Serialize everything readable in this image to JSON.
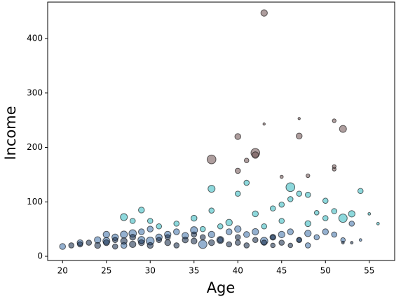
{
  "chart_data": {
    "type": "scatter",
    "x_label": "Age",
    "y_label": "Income",
    "xlim": [
      18.3,
      57.9
    ],
    "ylim": [
      -7.7,
      467
    ],
    "xticks": [
      20,
      25,
      30,
      35,
      40,
      45,
      50,
      55
    ],
    "yticks": [
      0,
      100,
      200,
      300,
      400
    ],
    "series": [
      {
        "color": "#6b4e4e",
        "x": [
          43,
          37,
          42,
          42,
          40,
          47,
          52,
          51,
          40,
          41,
          43,
          47,
          51,
          51,
          45,
          48
        ],
        "values": [
          447,
          178,
          190,
          186,
          220,
          221,
          234,
          249,
          157,
          176,
          243,
          253,
          160,
          165,
          146,
          148
        ],
        "sizes": [
          60,
          110,
          110,
          60,
          50,
          50,
          70,
          20,
          40,
          30,
          8,
          8,
          20,
          20,
          15,
          20
        ]
      },
      {
        "color": "#2fb8c0",
        "x": [
          46,
          37,
          41,
          27,
          29,
          30,
          35,
          37,
          39,
          40,
          42,
          44,
          45,
          46,
          47,
          48,
          49,
          50,
          51,
          52,
          53,
          54,
          43,
          45,
          48,
          50,
          38,
          36,
          33,
          31,
          28,
          55,
          56
        ],
        "values": [
          127,
          124,
          135,
          72,
          85,
          65,
          70,
          84,
          62,
          115,
          78,
          88,
          95,
          105,
          115,
          113,
          80,
          102,
          83,
          70,
          78,
          120,
          55,
          65,
          60,
          70,
          55,
          50,
          60,
          55,
          65,
          78,
          60
        ],
        "sizes": [
          110,
          70,
          40,
          70,
          50,
          40,
          50,
          40,
          60,
          40,
          50,
          40,
          40,
          40,
          40,
          40,
          30,
          40,
          40,
          100,
          60,
          40,
          40,
          40,
          50,
          40,
          40,
          40,
          40,
          40,
          40,
          10,
          10
        ]
      },
      {
        "color": "#3d6fa8",
        "x": [
          20,
          22,
          24,
          25,
          26,
          27,
          28,
          29,
          30,
          31,
          32,
          33,
          34,
          35,
          36,
          37,
          38,
          39,
          40,
          41,
          42,
          43,
          44,
          45,
          46,
          47,
          48,
          49,
          50,
          51,
          52,
          53,
          48,
          30,
          25,
          27,
          29,
          54
        ],
        "values": [
          18,
          25,
          30,
          28,
          35,
          40,
          42,
          30,
          28,
          35,
          40,
          45,
          38,
          48,
          22,
          40,
          30,
          45,
          50,
          40,
          45,
          28,
          35,
          40,
          45,
          30,
          42,
          35,
          45,
          40,
          30,
          60,
          20,
          50,
          40,
          20,
          45,
          30
        ],
        "sizes": [
          50,
          50,
          60,
          70,
          60,
          70,
          80,
          70,
          90,
          60,
          60,
          50,
          60,
          70,
          100,
          60,
          70,
          50,
          60,
          50,
          60,
          80,
          50,
          60,
          50,
          40,
          60,
          40,
          50,
          40,
          30,
          40,
          40,
          50,
          60,
          50,
          50,
          10
        ]
      },
      {
        "color": "#0f2444",
        "x": [
          21,
          22,
          23,
          24,
          25,
          26,
          27,
          28,
          29,
          30,
          31,
          32,
          33,
          34,
          35,
          36,
          37,
          38,
          39,
          40,
          41,
          42,
          43,
          44,
          45,
          46,
          47,
          44,
          40,
          35,
          32,
          28,
          26,
          52,
          53
        ],
        "values": [
          20,
          22,
          25,
          20,
          25,
          18,
          28,
          22,
          25,
          20,
          30,
          25,
          20,
          30,
          28,
          35,
          25,
          30,
          22,
          35,
          20,
          30,
          25,
          35,
          25,
          20,
          30,
          20,
          25,
          40,
          35,
          35,
          30,
          25,
          25
        ],
        "sizes": [
          40,
          40,
          40,
          50,
          50,
          40,
          60,
          60,
          50,
          50,
          40,
          50,
          40,
          50,
          50,
          40,
          50,
          40,
          40,
          40,
          40,
          40,
          40,
          30,
          40,
          30,
          30,
          30,
          40,
          40,
          40,
          50,
          40,
          10,
          10
        ]
      }
    ]
  }
}
